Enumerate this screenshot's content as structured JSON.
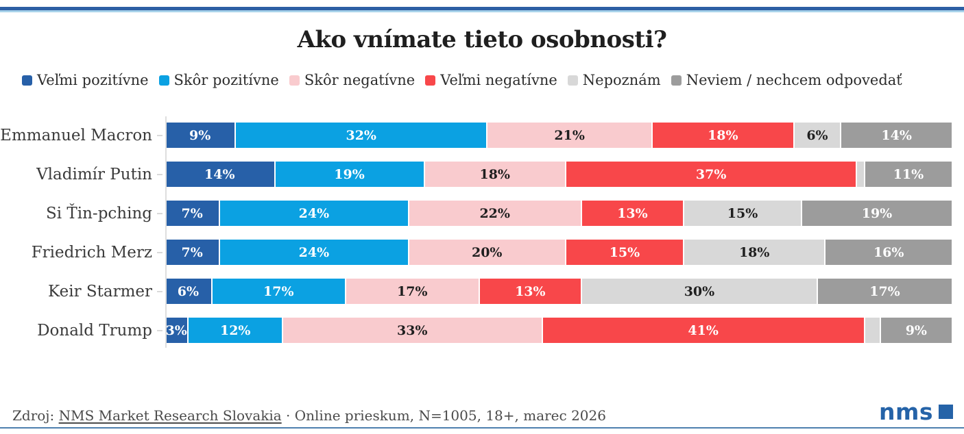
{
  "accent": {
    "topbar_dark": "#2d5fa4",
    "topbar_light": "#a9d3ea",
    "footer_rule": "#4d7fae",
    "logo_blue": "#2563a8",
    "title_color": "#1f1f1f"
  },
  "title": "Ako vnímate tieto osobnosti?",
  "legend": [
    {
      "label": "Veľmi pozitívne",
      "color": "#2760a8"
    },
    {
      "label": "Skôr pozitívne",
      "color": "#0ba1e2"
    },
    {
      "label": "Skôr negatívne",
      "color": "#f9cbce"
    },
    {
      "label": "Veľmi negatívne",
      "color": "#f8474a"
    },
    {
      "label": "Nepoznám",
      "color": "#d8d8d8"
    },
    {
      "label": "Neviem / nechcem odpovedať",
      "color": "#9c9c9c"
    }
  ],
  "chart_data": {
    "type": "bar",
    "orientation": "horizontal",
    "stacked": true,
    "title": "Ako vnímate tieto osobnosti?",
    "legend_position": "top",
    "xlim": [
      0,
      100
    ],
    "value_suffix": "%",
    "min_label_value": 3,
    "categories": [
      "Emmanuel Macron",
      "Vladimír Putin",
      "Si Ťin-pching",
      "Friedrich Merz",
      "Keir Starmer",
      "Donald Trump"
    ],
    "series": [
      {
        "name": "Veľmi pozitívne",
        "color": "#2760a8",
        "text_color": "#ffffff",
        "values": [
          9,
          14,
          7,
          7,
          6,
          3
        ]
      },
      {
        "name": "Skôr pozitívne",
        "color": "#0ba1e2",
        "text_color": "#ffffff",
        "values": [
          32,
          19,
          24,
          24,
          17,
          12
        ]
      },
      {
        "name": "Skôr negatívne",
        "color": "#f9cbce",
        "text_color": "#1f1f1f",
        "values": [
          21,
          18,
          22,
          20,
          17,
          33
        ]
      },
      {
        "name": "Veľmi negatívne",
        "color": "#f8474a",
        "text_color": "#ffffff",
        "values": [
          18,
          37,
          13,
          15,
          13,
          41
        ]
      },
      {
        "name": "Nepoznám",
        "color": "#d8d8d8",
        "text_color": "#1f1f1f",
        "values": [
          6,
          1,
          15,
          18,
          30,
          2
        ]
      },
      {
        "name": "Neviem / nechcem odpovedať",
        "color": "#9c9c9c",
        "text_color": "#ffffff",
        "values": [
          14,
          11,
          19,
          16,
          17,
          9
        ]
      }
    ]
  },
  "footer": {
    "prefix": "Zdroj: ",
    "link": "NMS Market Research Slovakia",
    "rest": " · Online prieskum, N=1005, 18+, marec 2026"
  },
  "logo": {
    "text": "nms"
  }
}
